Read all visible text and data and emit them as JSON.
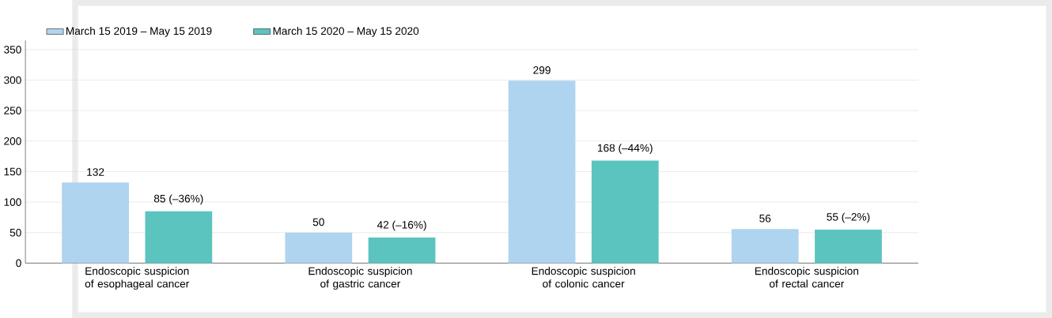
{
  "chart_data": {
    "type": "bar",
    "categories": [
      "Endoscopic suspicion of esophageal cancer",
      "Endoscopic suspicion of gastric cancer",
      "Endoscopic suspicion of colonic cancer",
      "Endoscopic suspicion of rectal cancer"
    ],
    "series": [
      {
        "name": "March 15 2019 – May 15 2019",
        "color": "#aed4f0",
        "values": [
          132,
          50,
          299,
          56
        ],
        "value_labels": [
          "132",
          "50",
          "299",
          "56"
        ]
      },
      {
        "name": "March 15 2020 – May 15 2020",
        "color": "#5bc4bf",
        "values": [
          85,
          42,
          168,
          55
        ],
        "value_labels": [
          "85 (–36%)",
          "42 (–16%)",
          "168 (–44%)",
          "55 (–2%)"
        ]
      }
    ],
    "ylim": [
      0,
      365
    ],
    "yticks": [
      0,
      50,
      100,
      150,
      200,
      250,
      300,
      350
    ],
    "grid": "y",
    "legend": "top left"
  }
}
